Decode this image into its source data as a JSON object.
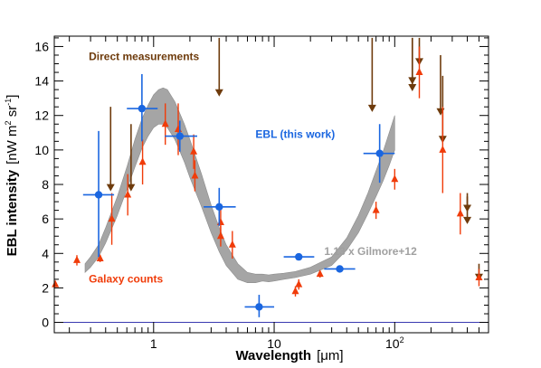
{
  "chart_data": {
    "type": "scatter",
    "xlabel": "Wavelength",
    "xunit": "[μm]",
    "ylabel": "EBL intensity",
    "yunit_parts": [
      "[nW m",
      "2",
      " sr",
      "-1",
      "]"
    ],
    "xscale": "log",
    "xlim": [
      0.15,
      600
    ],
    "ylim": [
      -0.6,
      16.6
    ],
    "yticks": [
      0,
      2,
      4,
      6,
      8,
      10,
      12,
      14,
      16
    ],
    "xtick_major": [
      1,
      10,
      100
    ],
    "xtick_labels": [
      "1",
      "10",
      "10"
    ],
    "xtick_label_sup": [
      "",
      "",
      "2"
    ],
    "colors": {
      "ebl": "#1a66e0",
      "galaxy": "#f03c0a",
      "direct": "#6e3b0c",
      "model": "#a0a0a0",
      "zero_line": "#3a3ab0"
    },
    "annotations": [
      {
        "text": "Direct measurements",
        "color": "#6e3b0c",
        "x": 0.29,
        "y": 15.2
      },
      {
        "text": "EBL (this work)",
        "color": "#1a66e0",
        "x": 7.0,
        "y": 10.7
      },
      {
        "text": "1.13 x Gilmore+12",
        "color": "#a0a0a0",
        "x": 26.0,
        "y": 3.9
      },
      {
        "text": "Galaxy counts",
        "color": "#f03c0a",
        "x": 0.29,
        "y": 2.3
      }
    ],
    "series": [
      {
        "name": "EBL (this work)",
        "marker": "circle",
        "points": [
          {
            "x": 0.35,
            "y": 7.4,
            "xlo": 0.26,
            "xhi": 0.47,
            "ylo": 3.8,
            "yhi": 11.1
          },
          {
            "x": 0.8,
            "y": 12.4,
            "xlo": 0.6,
            "xhi": 1.08,
            "ylo": 10.5,
            "yhi": 14.4
          },
          {
            "x": 1.65,
            "y": 10.8,
            "xlo": 1.24,
            "xhi": 2.3,
            "ylo": 9.9,
            "yhi": 11.7
          },
          {
            "x": 3.5,
            "y": 6.7,
            "xlo": 2.6,
            "xhi": 4.8,
            "ylo": 5.6,
            "yhi": 7.8
          },
          {
            "x": 7.5,
            "y": 0.9,
            "xlo": 5.7,
            "xhi": 10.0,
            "ylo": 0.3,
            "yhi": 1.6
          },
          {
            "x": 16.0,
            "y": 3.8,
            "xlo": 12.0,
            "xhi": 21.5,
            "ylo": 3.7,
            "yhi": 3.9
          },
          {
            "x": 35.0,
            "y": 3.1,
            "xlo": 26.0,
            "xhi": 47.0,
            "ylo": 3.0,
            "yhi": 3.2
          },
          {
            "x": 75.0,
            "y": 9.8,
            "xlo": 55.0,
            "xhi": 100.0,
            "ylo": 8.1,
            "yhi": 11.5
          }
        ]
      },
      {
        "name": "Galaxy counts",
        "marker": "triangle",
        "points": [
          {
            "x": 0.153,
            "y": 2.2,
            "err": 0.0
          },
          {
            "x": 0.231,
            "y": 3.6,
            "err": 0.3
          },
          {
            "x": 0.36,
            "y": 3.7,
            "err": 0.2
          },
          {
            "x": 0.45,
            "y": 6.0,
            "err": 1.5
          },
          {
            "x": 0.61,
            "y": 7.4,
            "err": 1.2
          },
          {
            "x": 0.81,
            "y": 9.3,
            "err": 1.3
          },
          {
            "x": 1.25,
            "y": 11.5,
            "err": 1.2
          },
          {
            "x": 1.6,
            "y": 11.2,
            "err": 1.5
          },
          {
            "x": 2.15,
            "y": 9.9,
            "err": 1.0
          },
          {
            "x": 2.2,
            "y": 8.5,
            "err": 0.9
          },
          {
            "x": 3.6,
            "y": 5.8,
            "err": 0.9
          },
          {
            "x": 3.6,
            "y": 5.0,
            "err": 0.6
          },
          {
            "x": 4.5,
            "y": 4.5,
            "err": 0.8
          },
          {
            "x": 15.0,
            "y": 1.8,
            "err": 0.3
          },
          {
            "x": 16.0,
            "y": 2.2,
            "err": 0.3
          },
          {
            "x": 24.0,
            "y": 2.8,
            "err": 0.2
          },
          {
            "x": 70.0,
            "y": 6.5,
            "err": 0.5
          },
          {
            "x": 100.0,
            "y": 8.3,
            "err": 0.6
          },
          {
            "x": 160.0,
            "y": 14.5,
            "err": 1.5
          },
          {
            "x": 250.0,
            "y": 10.0,
            "err": 2.5
          },
          {
            "x": 350.0,
            "y": 6.3,
            "err": 1.2
          },
          {
            "x": 500.0,
            "y": 2.6,
            "err": 0.5
          }
        ]
      },
      {
        "name": "Direct measurements",
        "marker": "arrow-down",
        "points": [
          {
            "x": 0.44,
            "y": 12.5,
            "tip": 7.6
          },
          {
            "x": 0.65,
            "y": 11.5,
            "tip": 7.6
          },
          {
            "x": 3.5,
            "y": 16.5,
            "tip": 13.1
          },
          {
            "x": 65.0,
            "y": 16.5,
            "tip": 12.2
          },
          {
            "x": 140.0,
            "y": 16.5,
            "tip": 13.8
          },
          {
            "x": 140.0,
            "y": 16.5,
            "tip": 13.4
          },
          {
            "x": 160.0,
            "y": 16.5,
            "tip": 14.9
          },
          {
            "x": 240.0,
            "y": 15.5,
            "tip": 12.0
          },
          {
            "x": 250.0,
            "y": 14.3,
            "tip": 10.4
          },
          {
            "x": 400.0,
            "y": 7.5,
            "tip": 5.7
          },
          {
            "x": 400.0,
            "y": 7.3,
            "tip": 6.4
          },
          {
            "x": 500.0,
            "y": 3.4,
            "tip": 2.4
          }
        ]
      },
      {
        "name": "1.13 x Gilmore+12",
        "type": "band",
        "x": [
          0.27,
          0.3,
          0.35,
          0.4,
          0.5,
          0.6,
          0.7,
          0.8,
          0.9,
          1.0,
          1.1,
          1.2,
          1.3,
          1.5,
          1.8,
          2.0,
          2.5,
          3.0,
          3.5,
          4.0,
          5.0,
          6.0,
          7.0,
          8.0,
          9.0,
          10.0,
          12.0,
          15.0,
          20.0,
          30.0,
          40.0,
          50.0,
          60.0,
          70.0,
          80.0,
          90.0,
          100.0
        ],
        "lo": [
          2.9,
          3.2,
          3.8,
          4.6,
          6.2,
          7.7,
          9.0,
          10.1,
          10.8,
          11.3,
          11.5,
          11.5,
          11.3,
          10.6,
          9.3,
          8.4,
          6.7,
          5.2,
          4.1,
          3.3,
          2.5,
          2.3,
          2.3,
          2.4,
          2.35,
          2.4,
          2.5,
          2.6,
          2.8,
          3.3,
          4.2,
          5.2,
          6.3,
          7.3,
          8.2,
          9.1,
          10.0
        ],
        "hi": [
          3.4,
          3.8,
          4.5,
          5.5,
          7.3,
          9.0,
          10.6,
          11.8,
          12.6,
          13.2,
          13.5,
          13.6,
          13.5,
          12.8,
          11.5,
          10.6,
          8.6,
          6.8,
          5.5,
          4.5,
          3.4,
          2.9,
          2.8,
          2.8,
          2.75,
          2.8,
          2.85,
          2.95,
          3.2,
          3.8,
          4.9,
          6.2,
          7.5,
          8.8,
          9.9,
          11.0,
          12.0
        ]
      }
    ]
  }
}
